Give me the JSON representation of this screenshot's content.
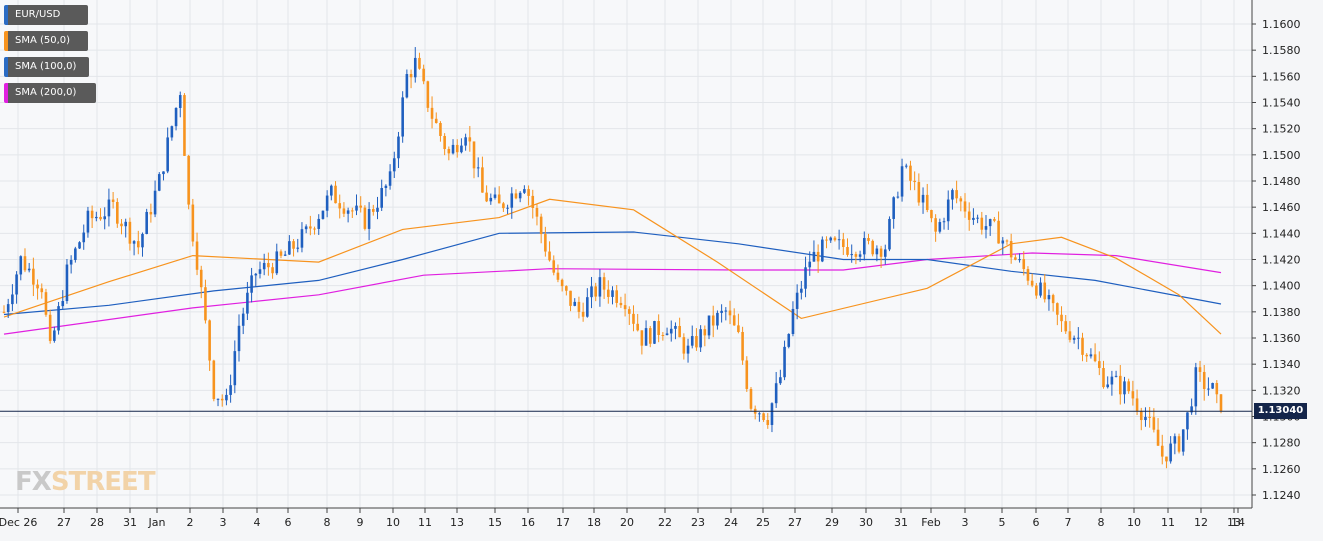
{
  "legend": [
    {
      "label": "EUR/USD",
      "color": "#2b6cc4"
    },
    {
      "label": "SMA (50,0)",
      "color": "#f7931e"
    },
    {
      "label": "SMA (100,0)",
      "color": "#2b6cc4"
    },
    {
      "label": "SMA (200,0)",
      "color": "#e020e0"
    }
  ],
  "price_badge": "1.13040",
  "logo": {
    "fx": "FX",
    "street": "STREET"
  },
  "colors": {
    "up": "#1f5fbf",
    "down": "#f7931e",
    "sma50": "#f7931e",
    "sma100": "#1f5fbf",
    "sma200": "#e020e0",
    "grid": "#e3e6ea",
    "price_line": "#14254a"
  },
  "chart_data": {
    "type": "candlestick",
    "symbol": "EUR/USD",
    "timeframe": "hourly candles (approx. 4H)",
    "ylim": [
      1.123,
      1.162
    ],
    "y_ticks": [
      1.124,
      1.126,
      1.128,
      1.13,
      1.132,
      1.134,
      1.136,
      1.138,
      1.14,
      1.142,
      1.144,
      1.146,
      1.148,
      1.15,
      1.152,
      1.154,
      1.156,
      1.158,
      1.16
    ],
    "x_tick_labels": [
      "Dec 26",
      "27",
      "28",
      "31",
      "Jan",
      "2",
      "3",
      "4",
      "6",
      "8",
      "9",
      "10",
      "11",
      "13",
      "15",
      "16",
      "17",
      "18",
      "20",
      "22",
      "23",
      "24",
      "25",
      "27",
      "29",
      "30",
      "31",
      "Feb",
      "3",
      "5",
      "6",
      "7",
      "8",
      "10",
      "11",
      "12",
      "13",
      "14"
    ],
    "current_price": 1.1304,
    "anchors": [
      [
        0,
        1.138
      ],
      [
        4,
        1.142
      ],
      [
        9,
        1.14
      ],
      [
        11,
        1.135
      ],
      [
        15,
        1.141
      ],
      [
        20,
        1.145
      ],
      [
        26,
        1.146
      ],
      [
        32,
        1.143
      ],
      [
        37,
        1.148
      ],
      [
        42,
        1.155
      ],
      [
        44,
        1.146
      ],
      [
        46,
        1.142
      ],
      [
        50,
        1.132
      ],
      [
        53,
        1.131
      ],
      [
        56,
        1.137
      ],
      [
        60,
        1.141
      ],
      [
        66,
        1.142
      ],
      [
        72,
        1.144
      ],
      [
        78,
        1.147
      ],
      [
        86,
        1.145
      ],
      [
        92,
        1.148
      ],
      [
        96,
        1.156
      ],
      [
        98,
        1.157
      ],
      [
        102,
        1.153
      ],
      [
        106,
        1.15
      ],
      [
        110,
        1.152
      ],
      [
        114,
        1.147
      ],
      [
        118,
        1.146
      ],
      [
        124,
        1.148
      ],
      [
        128,
        1.144
      ],
      [
        132,
        1.14
      ],
      [
        137,
        1.138
      ],
      [
        142,
        1.14
      ],
      [
        148,
        1.139
      ],
      [
        152,
        1.136
      ],
      [
        158,
        1.137
      ],
      [
        163,
        1.135
      ],
      [
        168,
        1.137
      ],
      [
        172,
        1.138
      ],
      [
        175,
        1.136
      ],
      [
        178,
        1.131
      ],
      [
        182,
        1.13
      ],
      [
        185,
        1.133
      ],
      [
        188,
        1.138
      ],
      [
        192,
        1.142
      ],
      [
        196,
        1.143
      ],
      [
        202,
        1.143
      ],
      [
        210,
        1.143
      ],
      [
        214,
        1.149
      ],
      [
        218,
        1.147
      ],
      [
        222,
        1.144
      ],
      [
        226,
        1.147
      ],
      [
        232,
        1.145
      ],
      [
        237,
        1.144
      ],
      [
        241,
        1.142
      ],
      [
        246,
        1.14
      ],
      [
        252,
        1.137
      ],
      [
        256,
        1.136
      ],
      [
        262,
        1.133
      ],
      [
        268,
        1.132
      ],
      [
        272,
        1.13
      ],
      [
        276,
        1.127
      ],
      [
        280,
        1.128
      ],
      [
        282,
        1.13
      ],
      [
        284,
        1.133
      ],
      [
        288,
        1.132
      ],
      [
        290,
        1.13
      ]
    ],
    "candle_count": 291,
    "sma50": [
      [
        0,
        1.1376
      ],
      [
        25,
        1.1403
      ],
      [
        45,
        1.1423
      ],
      [
        75,
        1.1418
      ],
      [
        95,
        1.1443
      ],
      [
        118,
        1.1452
      ],
      [
        130,
        1.1466
      ],
      [
        150,
        1.1458
      ],
      [
        170,
        1.1418
      ],
      [
        190,
        1.1375
      ],
      [
        220,
        1.1398
      ],
      [
        240,
        1.1432
      ],
      [
        252,
        1.1437
      ],
      [
        265,
        1.1421
      ],
      [
        280,
        1.1393
      ],
      [
        290,
        1.1363
      ]
    ],
    "sma100": [
      [
        0,
        1.1378
      ],
      [
        25,
        1.1385
      ],
      [
        50,
        1.1396
      ],
      [
        75,
        1.1404
      ],
      [
        95,
        1.142
      ],
      [
        118,
        1.144
      ],
      [
        150,
        1.1441
      ],
      [
        175,
        1.1432
      ],
      [
        200,
        1.142
      ],
      [
        220,
        1.142
      ],
      [
        240,
        1.1411
      ],
      [
        260,
        1.1404
      ],
      [
        290,
        1.1386
      ]
    ],
    "sma200": [
      [
        0,
        1.1363
      ],
      [
        45,
        1.1383
      ],
      [
        75,
        1.1393
      ],
      [
        100,
        1.1408
      ],
      [
        130,
        1.1413
      ],
      [
        175,
        1.1412
      ],
      [
        200,
        1.1412
      ],
      [
        220,
        1.142
      ],
      [
        245,
        1.1425
      ],
      [
        265,
        1.1423
      ],
      [
        290,
        1.141
      ]
    ]
  }
}
